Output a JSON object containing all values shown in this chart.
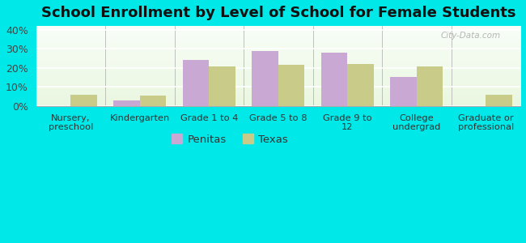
{
  "title": "School Enrollment by Level of School for Female Students",
  "categories": [
    "Nursery,\npreschool",
    "Kindergarten",
    "Grade 1 to 4",
    "Grade 5 to 8",
    "Grade 9 to\n12",
    "College\nundergrad",
    "Graduate or\nprofessional"
  ],
  "penitas": [
    0,
    3,
    24,
    29,
    28,
    15.5,
    0
  ],
  "texas": [
    6,
    5.5,
    21,
    21.5,
    22,
    21,
    6
  ],
  "penitas_color": "#c9a8d4",
  "texas_color": "#c8cc88",
  "outer_bg": "#00e8e8",
  "ylim": [
    0,
    42
  ],
  "yticks": [
    0,
    10,
    20,
    30,
    40
  ],
  "ytick_labels": [
    "0%",
    "10%",
    "20%",
    "30%",
    "40%"
  ],
  "bar_width": 0.38,
  "title_fontsize": 13,
  "legend_labels": [
    "Penitas",
    "Texas"
  ],
  "figsize": [
    6.5,
    3.0
  ],
  "dpi": 100
}
